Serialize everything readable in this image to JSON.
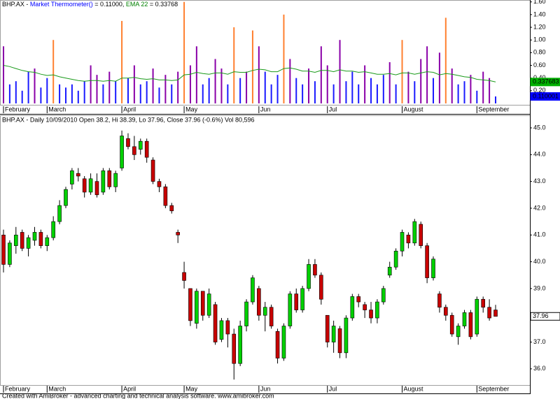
{
  "chart_data": [
    {
      "type": "bar",
      "title_parts": [
        {
          "text": "BHP.AX - ",
          "color": "#000000"
        },
        {
          "text": "Market Thermometer()",
          "color": "#0000ff"
        },
        {
          "text": " = 0.11000, ",
          "color": "#000000"
        },
        {
          "text": "EMA 22",
          "color": "#008000"
        },
        {
          "text": " = 0.33768",
          "color": "#000000"
        }
      ],
      "categories": [
        "February",
        null,
        null,
        null,
        null,
        null,
        null,
        "March",
        null,
        null,
        null,
        null,
        null,
        null,
        null,
        null,
        null,
        null,
        null,
        "April",
        null,
        null,
        null,
        null,
        null,
        null,
        null,
        null,
        null,
        "May",
        null,
        null,
        null,
        null,
        null,
        null,
        null,
        null,
        null,
        null,
        null,
        "Jun",
        null,
        null,
        null,
        null,
        null,
        null,
        null,
        null,
        null,
        null,
        "Jul",
        null,
        null,
        null,
        null,
        null,
        null,
        null,
        null,
        null,
        null,
        null,
        "August",
        null,
        null,
        null,
        null,
        null,
        null,
        null,
        null,
        null,
        null,
        null,
        "September",
        null,
        null,
        null
      ],
      "series": [
        {
          "name": "Market Thermometer()",
          "color_low": "#1a1aff",
          "color_mid": "#8a00a8",
          "color_high": "#ff8030",
          "values": [
            0.9,
            0.3,
            0.35,
            0.2,
            0.5,
            0.55,
            0.25,
            0.4,
            1.0,
            0.3,
            0.25,
            0.3,
            0.2,
            0.35,
            0.6,
            0.45,
            0.3,
            0.5,
            0.35,
            1.3,
            0.4,
            0.6,
            0.3,
            0.35,
            0.55,
            0.25,
            0.45,
            0.3,
            0.5,
            1.6,
            0.6,
            0.9,
            0.3,
            0.4,
            0.7,
            0.55,
            0.3,
            1.2,
            0.4,
            0.5,
            1.15,
            0.9,
            0.5,
            0.3,
            0.45,
            1.4,
            0.7,
            0.4,
            0.3,
            0.55,
            0.35,
            0.9,
            0.6,
            0.3,
            1.0,
            0.35,
            0.5,
            0.3,
            0.6,
            0.4,
            0.3,
            0.45,
            0.65,
            0.3,
            1.0,
            0.5,
            0.35,
            0.7,
            0.9,
            0.4,
            0.8,
            1.35,
            0.55,
            0.3,
            0.35,
            0.45,
            0.2,
            0.5,
            0.4,
            0.110001
          ]
        },
        {
          "name": "EMA 22",
          "type": "line",
          "color": "#1a9a1a",
          "values": [
            0.6,
            0.58,
            0.55,
            0.52,
            0.5,
            0.49,
            0.46,
            0.44,
            0.45,
            0.42,
            0.4,
            0.38,
            0.36,
            0.35,
            0.36,
            0.36,
            0.35,
            0.36,
            0.35,
            0.4,
            0.4,
            0.41,
            0.39,
            0.38,
            0.39,
            0.37,
            0.37,
            0.36,
            0.37,
            0.45,
            0.46,
            0.49,
            0.47,
            0.46,
            0.48,
            0.48,
            0.46,
            0.5,
            0.49,
            0.49,
            0.52,
            0.54,
            0.53,
            0.5,
            0.5,
            0.55,
            0.56,
            0.54,
            0.51,
            0.51,
            0.49,
            0.52,
            0.52,
            0.5,
            0.53,
            0.51,
            0.51,
            0.49,
            0.5,
            0.48,
            0.46,
            0.46,
            0.47,
            0.45,
            0.48,
            0.48,
            0.46,
            0.48,
            0.5,
            0.49,
            0.45,
            0.47,
            0.46,
            0.44,
            0.42,
            0.41,
            0.38,
            0.37,
            0.36,
            0.337683
          ]
        }
      ],
      "ylim": [
        0,
        1.63
      ],
      "yticks": [
        {
          "value": 0.2,
          "label": "0.20"
        },
        {
          "value": 0.4,
          "label": "0.40"
        },
        {
          "value": 0.6,
          "label": "0.60"
        },
        {
          "value": 0.8,
          "label": "0.80"
        },
        {
          "value": 1.0,
          "label": "1.00"
        },
        {
          "value": 1.2,
          "label": "1.20"
        },
        {
          "value": 1.4,
          "label": "1.40"
        },
        {
          "value": 1.6,
          "label": "1.60"
        }
      ],
      "markers": [
        {
          "value": 0.337683,
          "label": "0.337683",
          "color": "#00b000",
          "text_color": "#ffffff"
        },
        {
          "value": 0.110001,
          "label": "0.110001",
          "color": "#0000ff",
          "text_color": "#ffffff"
        }
      ]
    },
    {
      "type": "candlestick",
      "title": "BHP.AX - Daily 10/09/2010 Open 38.2, Hi 38.39, Lo 37.96, Close 37.96 (-0.6%) Vol 80,596",
      "categories": [
        "February",
        null,
        null,
        null,
        null,
        null,
        null,
        "March",
        null,
        null,
        null,
        null,
        null,
        null,
        null,
        null,
        null,
        null,
        null,
        "April",
        null,
        null,
        null,
        null,
        null,
        null,
        null,
        null,
        null,
        "May",
        null,
        null,
        null,
        null,
        null,
        null,
        null,
        null,
        null,
        null,
        null,
        "Jun",
        null,
        null,
        null,
        null,
        null,
        null,
        null,
        null,
        null,
        null,
        "Jul",
        null,
        null,
        null,
        null,
        null,
        null,
        null,
        null,
        null,
        null,
        null,
        "August",
        null,
        null,
        null,
        null,
        null,
        null,
        null,
        null,
        null,
        null,
        null,
        "September",
        null,
        null,
        null
      ],
      "open": [
        41.0,
        39.9,
        40.6,
        41.1,
        40.5,
        40.8,
        41.1,
        40.6,
        40.9,
        41.5,
        42.1,
        42.9,
        43.3,
        43.1,
        42.6,
        43.0,
        42.6,
        43.4,
        42.8,
        43.5,
        44.6,
        44.3,
        44.2,
        44.5,
        43.8,
        43.0,
        42.8,
        42.1,
        41.1,
        39.6,
        39.0,
        37.7,
        38.9,
        38.0,
        38.4,
        37.1,
        37.8,
        37.3,
        36.2,
        37.6,
        38.5,
        39.0,
        38.0,
        38.3,
        37.4,
        36.4,
        37.6,
        38.8,
        38.2,
        39.0,
        39.9,
        39.5,
        38.0,
        37.0,
        37.5,
        36.6,
        37.9,
        38.7,
        38.4,
        38.2,
        37.9,
        38.5,
        39.5,
        39.8,
        40.4,
        41.0,
        40.7,
        41.4,
        40.6,
        39.4,
        38.8,
        38.3,
        38.0,
        37.2,
        37.6,
        38.1,
        37.3,
        38.6,
        38.3,
        38.2
      ],
      "high": [
        41.2,
        40.8,
        41.3,
        41.2,
        41.0,
        41.3,
        41.2,
        41.0,
        41.7,
        42.3,
        42.8,
        43.5,
        43.5,
        43.2,
        43.3,
        43.3,
        43.5,
        43.5,
        43.4,
        44.9,
        44.8,
        44.7,
        44.6,
        44.6,
        43.9,
        43.1,
        42.9,
        42.2,
        41.2,
        40.0,
        39.0,
        39.0,
        38.9,
        39.0,
        38.5,
        37.9,
        37.9,
        37.5,
        37.8,
        38.6,
        39.5,
        39.1,
        38.5,
        38.4,
        37.5,
        37.7,
        38.9,
        39.0,
        39.1,
        40.1,
        40.1,
        39.6,
        38.0,
        37.8,
        37.6,
        38.0,
        38.8,
        38.8,
        38.5,
        38.5,
        38.6,
        39.1,
        40.0,
        40.5,
        41.2,
        41.1,
        41.6,
        41.5,
        40.7,
        40.2,
        38.9,
        38.4,
        38.1,
        37.7,
        38.2,
        38.2,
        38.7,
        38.7,
        38.6,
        38.39
      ],
      "low": [
        39.6,
        39.8,
        40.3,
        40.4,
        40.2,
        40.6,
        40.5,
        40.4,
        40.8,
        41.4,
        42.0,
        42.7,
        43.0,
        42.4,
        42.5,
        42.4,
        42.5,
        42.7,
        42.6,
        43.4,
        44.2,
        43.8,
        44.0,
        43.7,
        42.9,
        42.6,
        42.0,
        41.8,
        40.7,
        39.0,
        37.6,
        37.5,
        37.8,
        37.9,
        36.9,
        37.0,
        36.8,
        35.6,
        36.1,
        37.4,
        38.4,
        37.8,
        37.4,
        37.5,
        36.2,
        36.3,
        37.5,
        38.1,
        38.1,
        38.9,
        39.4,
        38.4,
        36.8,
        36.6,
        36.4,
        36.4,
        37.8,
        38.3,
        37.9,
        37.7,
        37.7,
        38.4,
        39.4,
        39.7,
        40.2,
        40.5,
        40.6,
        40.5,
        39.2,
        39.3,
        38.1,
        37.8,
        37.2,
        36.9,
        37.5,
        37.1,
        37.2,
        38.1,
        37.8,
        37.96
      ],
      "close": [
        39.9,
        40.7,
        41.0,
        40.5,
        40.9,
        41.1,
        40.6,
        40.9,
        41.5,
        42.1,
        42.7,
        43.4,
        43.2,
        42.6,
        43.1,
        42.5,
        43.4,
        42.8,
        43.3,
        44.7,
        44.3,
        44.0,
        44.5,
        43.9,
        43.0,
        42.8,
        42.1,
        41.9,
        41.0,
        39.3,
        37.8,
        38.9,
        38.0,
        38.8,
        37.0,
        37.8,
        37.3,
        36.2,
        37.6,
        38.5,
        39.4,
        38.0,
        38.3,
        37.6,
        36.4,
        37.6,
        38.8,
        38.2,
        39.0,
        39.9,
        39.5,
        38.6,
        37.0,
        37.6,
        36.6,
        37.9,
        38.7,
        38.5,
        38.2,
        37.9,
        38.5,
        39.0,
        39.8,
        40.4,
        41.1,
        40.7,
        41.5,
        40.6,
        39.4,
        40.1,
        38.3,
        38.0,
        37.3,
        37.6,
        38.1,
        37.2,
        38.6,
        38.3,
        37.9,
        37.96
      ],
      "up_color": "#00d000",
      "down_color": "#c80000",
      "ylim": [
        35.37,
        45.47
      ],
      "yticks": [
        {
          "value": 36,
          "label": "36.0"
        },
        {
          "value": 37,
          "label": "37.0"
        },
        {
          "value": 38,
          "label": "38.0"
        },
        {
          "value": 39,
          "label": "39.0"
        },
        {
          "value": 40,
          "label": "40.0"
        },
        {
          "value": 41,
          "label": "41.0"
        },
        {
          "value": 42,
          "label": "42.0"
        },
        {
          "value": 43,
          "label": "43.0"
        },
        {
          "value": 44,
          "label": "44.0"
        },
        {
          "value": 45,
          "label": "45.0"
        }
      ],
      "markers": [
        {
          "value": 37.96,
          "label": "37.96",
          "color": "#ffffff",
          "text_color": "#000000"
        }
      ]
    }
  ],
  "footer": "Created with AmiBroker - advanced charting and technical analysis software. www.amibroker.com"
}
